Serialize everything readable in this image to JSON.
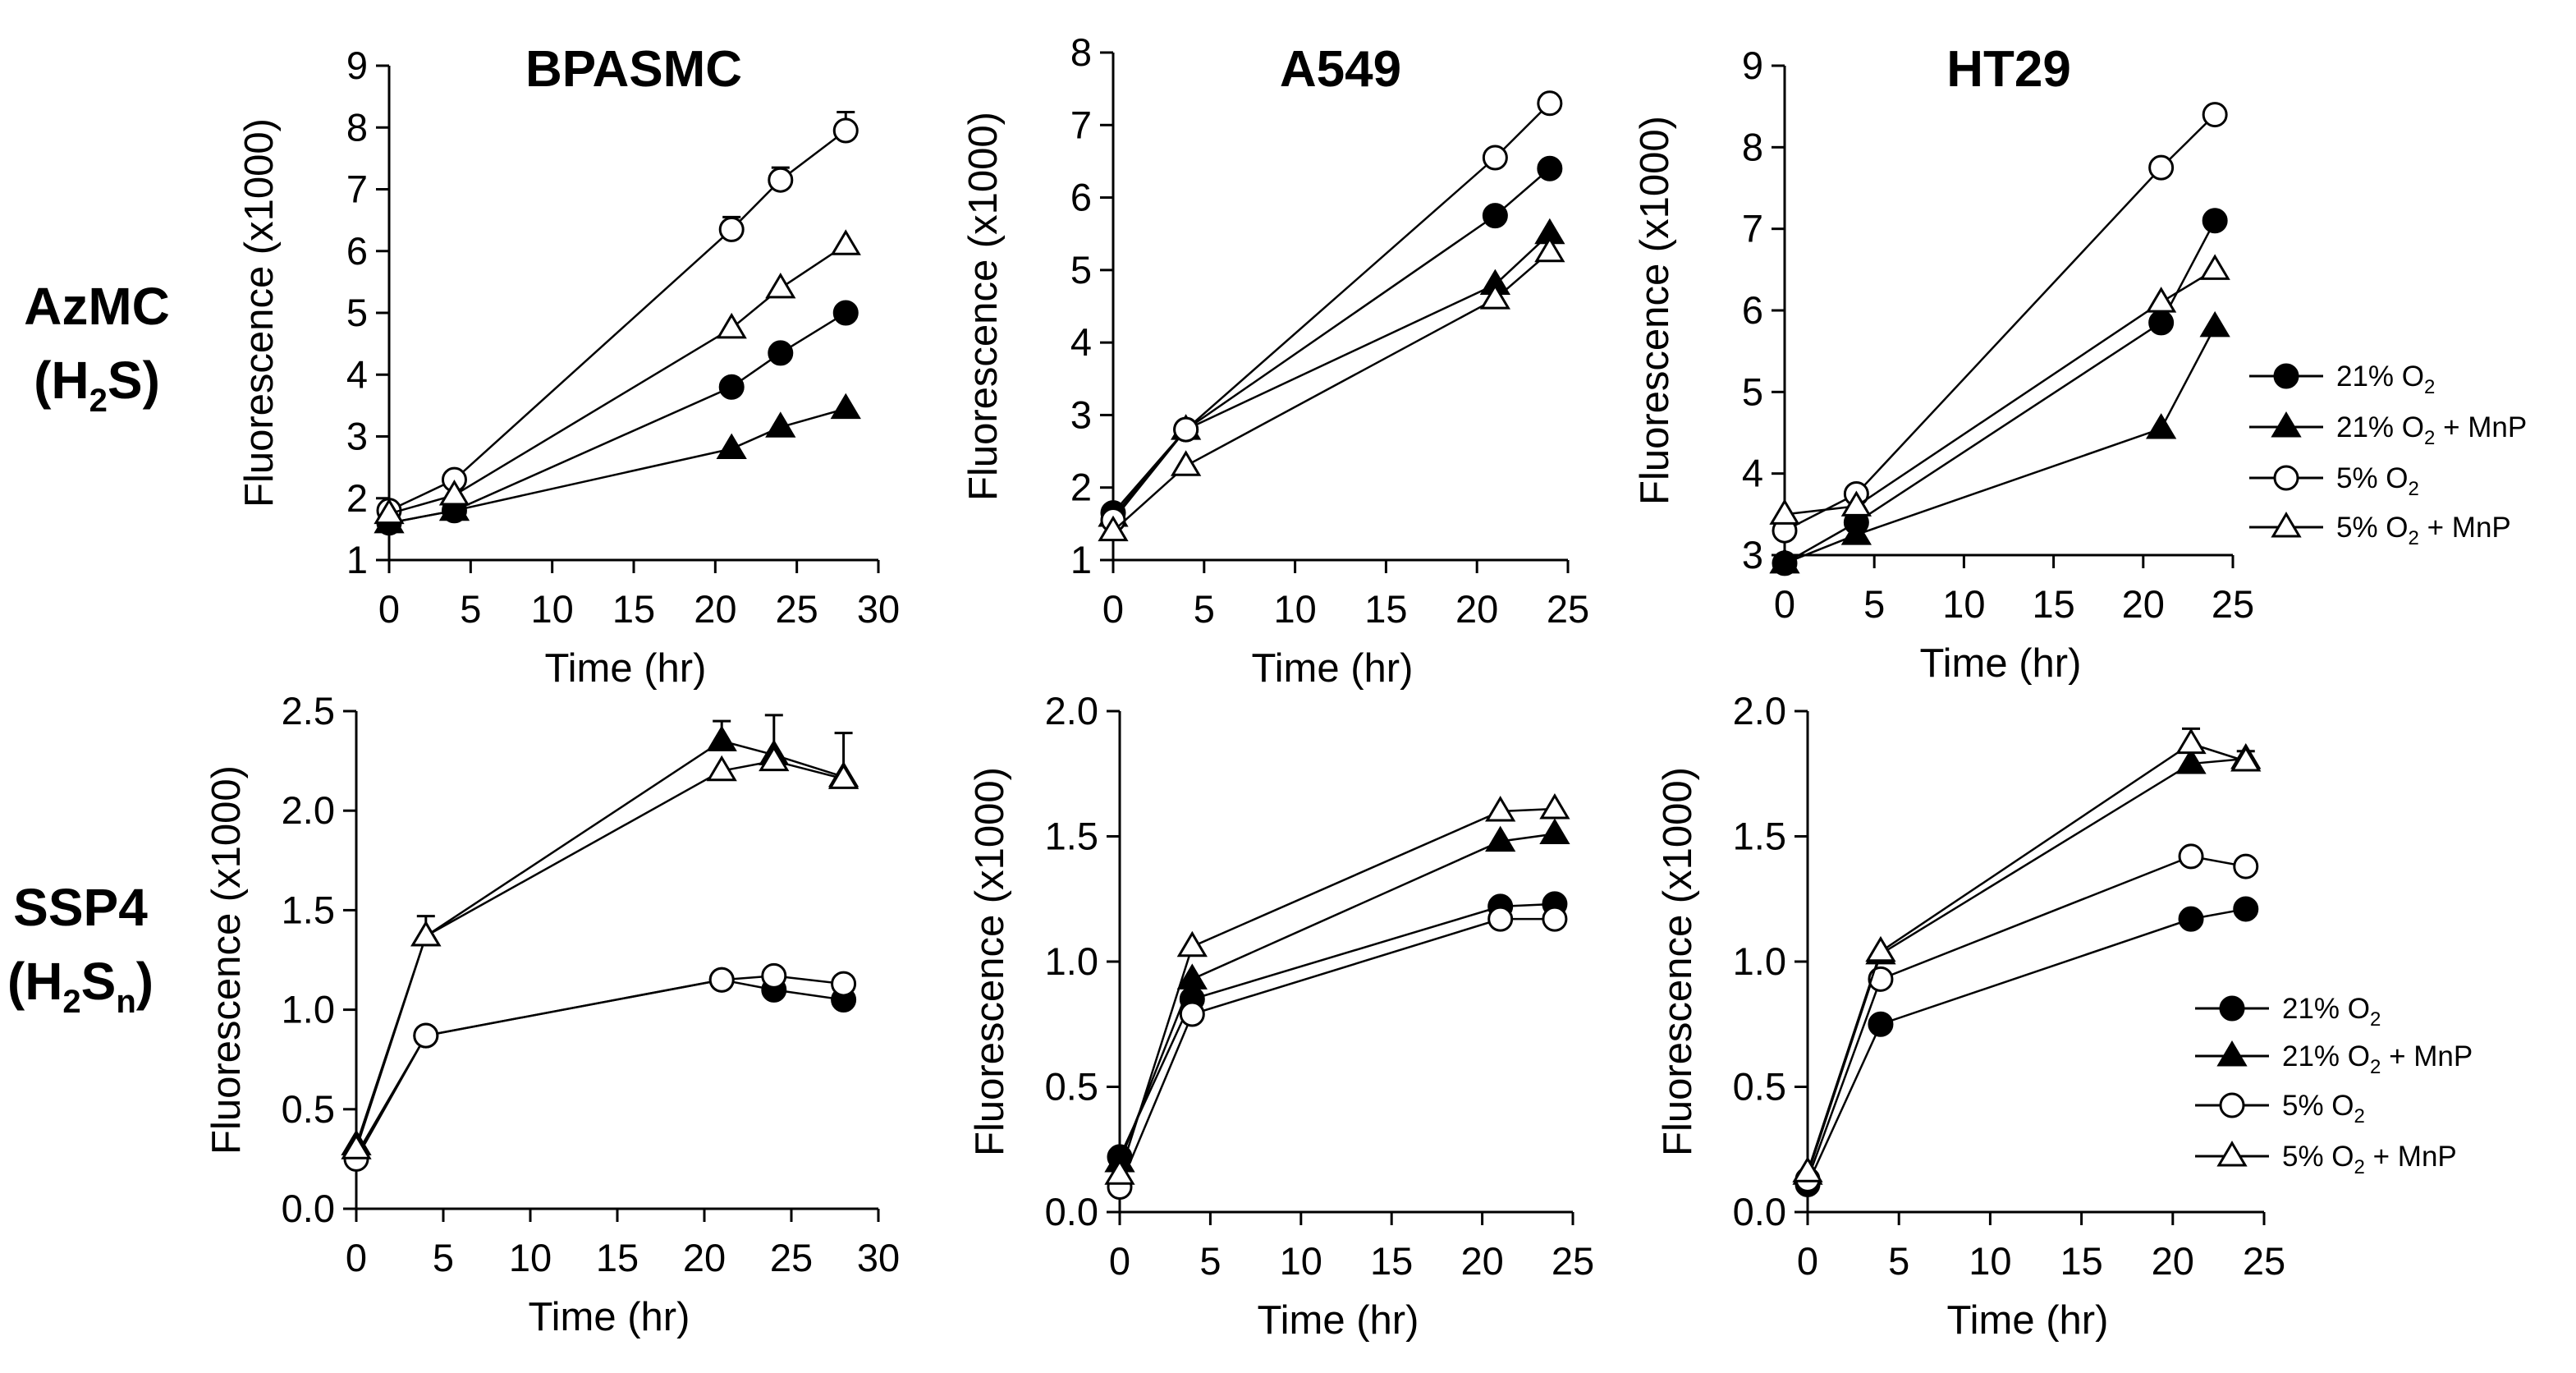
{
  "figure": {
    "row_labels": [
      {
        "main": "AzMC",
        "line2_pre": "(H",
        "line2_sub": "2",
        "line2_post": "S)"
      },
      {
        "main": "SSP4",
        "line2_pre": "(H",
        "line2_sub": "2",
        "line2_mid": "S",
        "line2_sub2": "n",
        "line2_post": ")"
      }
    ],
    "legend": [
      {
        "pre": "21% O",
        "sub": "2",
        "post": "",
        "marker": "filled-circle"
      },
      {
        "pre": "21% O",
        "sub": "2",
        "post": " + MnP",
        "marker": "filled-triangle"
      },
      {
        "pre": "5% O",
        "sub": "2",
        "post": "",
        "marker": "open-circle"
      },
      {
        "pre": "5% O",
        "sub": "2",
        "post": " + MnP",
        "marker": "open-triangle"
      }
    ],
    "colors": {
      "line": "#000000",
      "filled": "#000000",
      "open": "#ffffff"
    }
  },
  "chart_data": [
    {
      "type": "line",
      "row": 0,
      "col": 0,
      "title": "BPASMC",
      "xlabel": "Time (hr)",
      "ylabel": "Fluorescence (x1000)",
      "xlim": [
        0,
        30
      ],
      "ylim": [
        1,
        9
      ],
      "xticks": [
        0,
        5,
        10,
        15,
        20,
        25,
        30
      ],
      "yticks": [
        "1",
        "2",
        "3",
        "4",
        "5",
        "6",
        "7",
        "8",
        "9"
      ],
      "x": [
        0,
        4,
        21,
        24,
        28
      ],
      "series": [
        {
          "name": "21% O2",
          "values": [
            1.6,
            1.8,
            3.8,
            4.35,
            5.0
          ]
        },
        {
          "name": "21% O2 + MnP",
          "values": [
            1.6,
            1.8,
            2.8,
            3.15,
            3.45
          ]
        },
        {
          "name": "5% O2",
          "values": [
            1.8,
            2.3,
            6.35,
            7.15,
            7.95
          ],
          "err": [
            0,
            0,
            0.2,
            0.2,
            0.3
          ]
        },
        {
          "name": "5% O2 + MnP",
          "values": [
            1.75,
            2.05,
            4.75,
            5.4,
            6.1
          ]
        }
      ]
    },
    {
      "type": "line",
      "row": 0,
      "col": 1,
      "title": "A549",
      "xlabel": "Time (hr)",
      "ylabel": "Fluorescence (x1000)",
      "xlim": [
        0,
        25
      ],
      "ylim": [
        1,
        8
      ],
      "xticks": [
        0,
        5,
        10,
        15,
        20,
        25
      ],
      "yticks": [
        "1",
        "2",
        "3",
        "4",
        "5",
        "6",
        "7",
        "8"
      ],
      "x": [
        0,
        4,
        21,
        24
      ],
      "series": [
        {
          "name": "21% O2",
          "values": [
            1.65,
            2.8,
            5.75,
            6.4
          ]
        },
        {
          "name": "21% O2 + MnP",
          "values": [
            1.6,
            2.8,
            4.8,
            5.5
          ]
        },
        {
          "name": "5% O2",
          "values": [
            1.55,
            2.8,
            6.55,
            7.3
          ]
        },
        {
          "name": "5% O2 + MnP",
          "values": [
            1.4,
            2.3,
            4.6,
            5.25
          ]
        }
      ]
    },
    {
      "type": "line",
      "row": 0,
      "col": 2,
      "title": "HT29",
      "xlabel": "Time (hr)",
      "ylabel": "Fluorescence (x1000)",
      "xlim": [
        0,
        25
      ],
      "ylim": [
        3,
        9
      ],
      "xticks": [
        0,
        5,
        10,
        15,
        20,
        25
      ],
      "yticks": [
        "3",
        "4",
        "5",
        "6",
        "7",
        "8",
        "9"
      ],
      "x": [
        0,
        4,
        21,
        24
      ],
      "series": [
        {
          "name": "21% O2",
          "values": [
            2.9,
            3.4,
            5.85,
            7.1
          ]
        },
        {
          "name": "21% O2 + MnP",
          "values": [
            2.9,
            3.25,
            4.55,
            5.8
          ]
        },
        {
          "name": "5% O2",
          "values": [
            3.3,
            3.75,
            7.75,
            8.4
          ]
        },
        {
          "name": "5% O2 + MnP",
          "values": [
            3.5,
            3.6,
            6.1,
            6.5
          ]
        }
      ]
    },
    {
      "type": "line",
      "row": 1,
      "col": 0,
      "title": "",
      "xlabel": "Time (hr)",
      "ylabel": "Fluorescence (x1000)",
      "xlim": [
        0,
        30
      ],
      "ylim": [
        0,
        2.5
      ],
      "xticks": [
        0,
        5,
        10,
        15,
        20,
        25,
        30
      ],
      "yticks": [
        "0.0",
        "0.5",
        "1.0",
        "1.5",
        "2.0",
        "2.5"
      ],
      "x": [
        0,
        4,
        21,
        24,
        28
      ],
      "series": [
        {
          "name": "21% O2",
          "values": [
            0.27,
            0.87,
            1.15,
            1.1,
            1.05
          ]
        },
        {
          "name": "21% O2 + MnP",
          "values": [
            0.32,
            1.37,
            2.35,
            2.28,
            2.17
          ],
          "err": [
            0,
            0.1,
            0.1,
            0.2,
            0.22
          ]
        },
        {
          "name": "5% O2",
          "values": [
            0.25,
            0.87,
            1.15,
            1.17,
            1.13
          ]
        },
        {
          "name": "5% O2 + MnP",
          "values": [
            0.3,
            1.37,
            2.2,
            2.25,
            2.16
          ]
        }
      ]
    },
    {
      "type": "line",
      "row": 1,
      "col": 1,
      "title": "",
      "xlabel": "Time (hr)",
      "ylabel": "Fluorescence (x1000)",
      "xlim": [
        0,
        25
      ],
      "ylim": [
        0,
        2
      ],
      "xticks": [
        0,
        5,
        10,
        15,
        20,
        25
      ],
      "yticks": [
        "0.0",
        "0.5",
        "1.0",
        "1.5",
        "2.0"
      ],
      "x": [
        0,
        4,
        21,
        24
      ],
      "series": [
        {
          "name": "21% O2",
          "values": [
            0.22,
            0.85,
            1.22,
            1.23
          ]
        },
        {
          "name": "21% O2 + MnP",
          "values": [
            0.2,
            0.93,
            1.48,
            1.51
          ]
        },
        {
          "name": "5% O2",
          "values": [
            0.1,
            0.79,
            1.17,
            1.17
          ]
        },
        {
          "name": "5% O2 + MnP",
          "values": [
            0.15,
            1.06,
            1.6,
            1.61
          ]
        }
      ]
    },
    {
      "type": "line",
      "row": 1,
      "col": 2,
      "title": "",
      "xlabel": "Time (hr)",
      "ylabel": "Fluorescence (x1000)",
      "xlim": [
        0,
        25
      ],
      "ylim": [
        0,
        2
      ],
      "xticks": [
        0,
        5,
        10,
        15,
        20,
        25
      ],
      "yticks": [
        "0.0",
        "0.5",
        "1.0",
        "1.5",
        "2.0"
      ],
      "x": [
        0,
        4,
        21,
        24
      ],
      "series": [
        {
          "name": "21% O2",
          "values": [
            0.11,
            0.75,
            1.17,
            1.21
          ]
        },
        {
          "name": "21% O2 + MnP",
          "values": [
            0.15,
            1.03,
            1.79,
            1.81
          ]
        },
        {
          "name": "5% O2",
          "values": [
            0.13,
            0.93,
            1.42,
            1.38
          ]
        },
        {
          "name": "5% O2 + MnP",
          "values": [
            0.16,
            1.04,
            1.87,
            1.8
          ],
          "err": [
            0,
            0,
            0.06,
            0.04
          ]
        }
      ]
    }
  ]
}
